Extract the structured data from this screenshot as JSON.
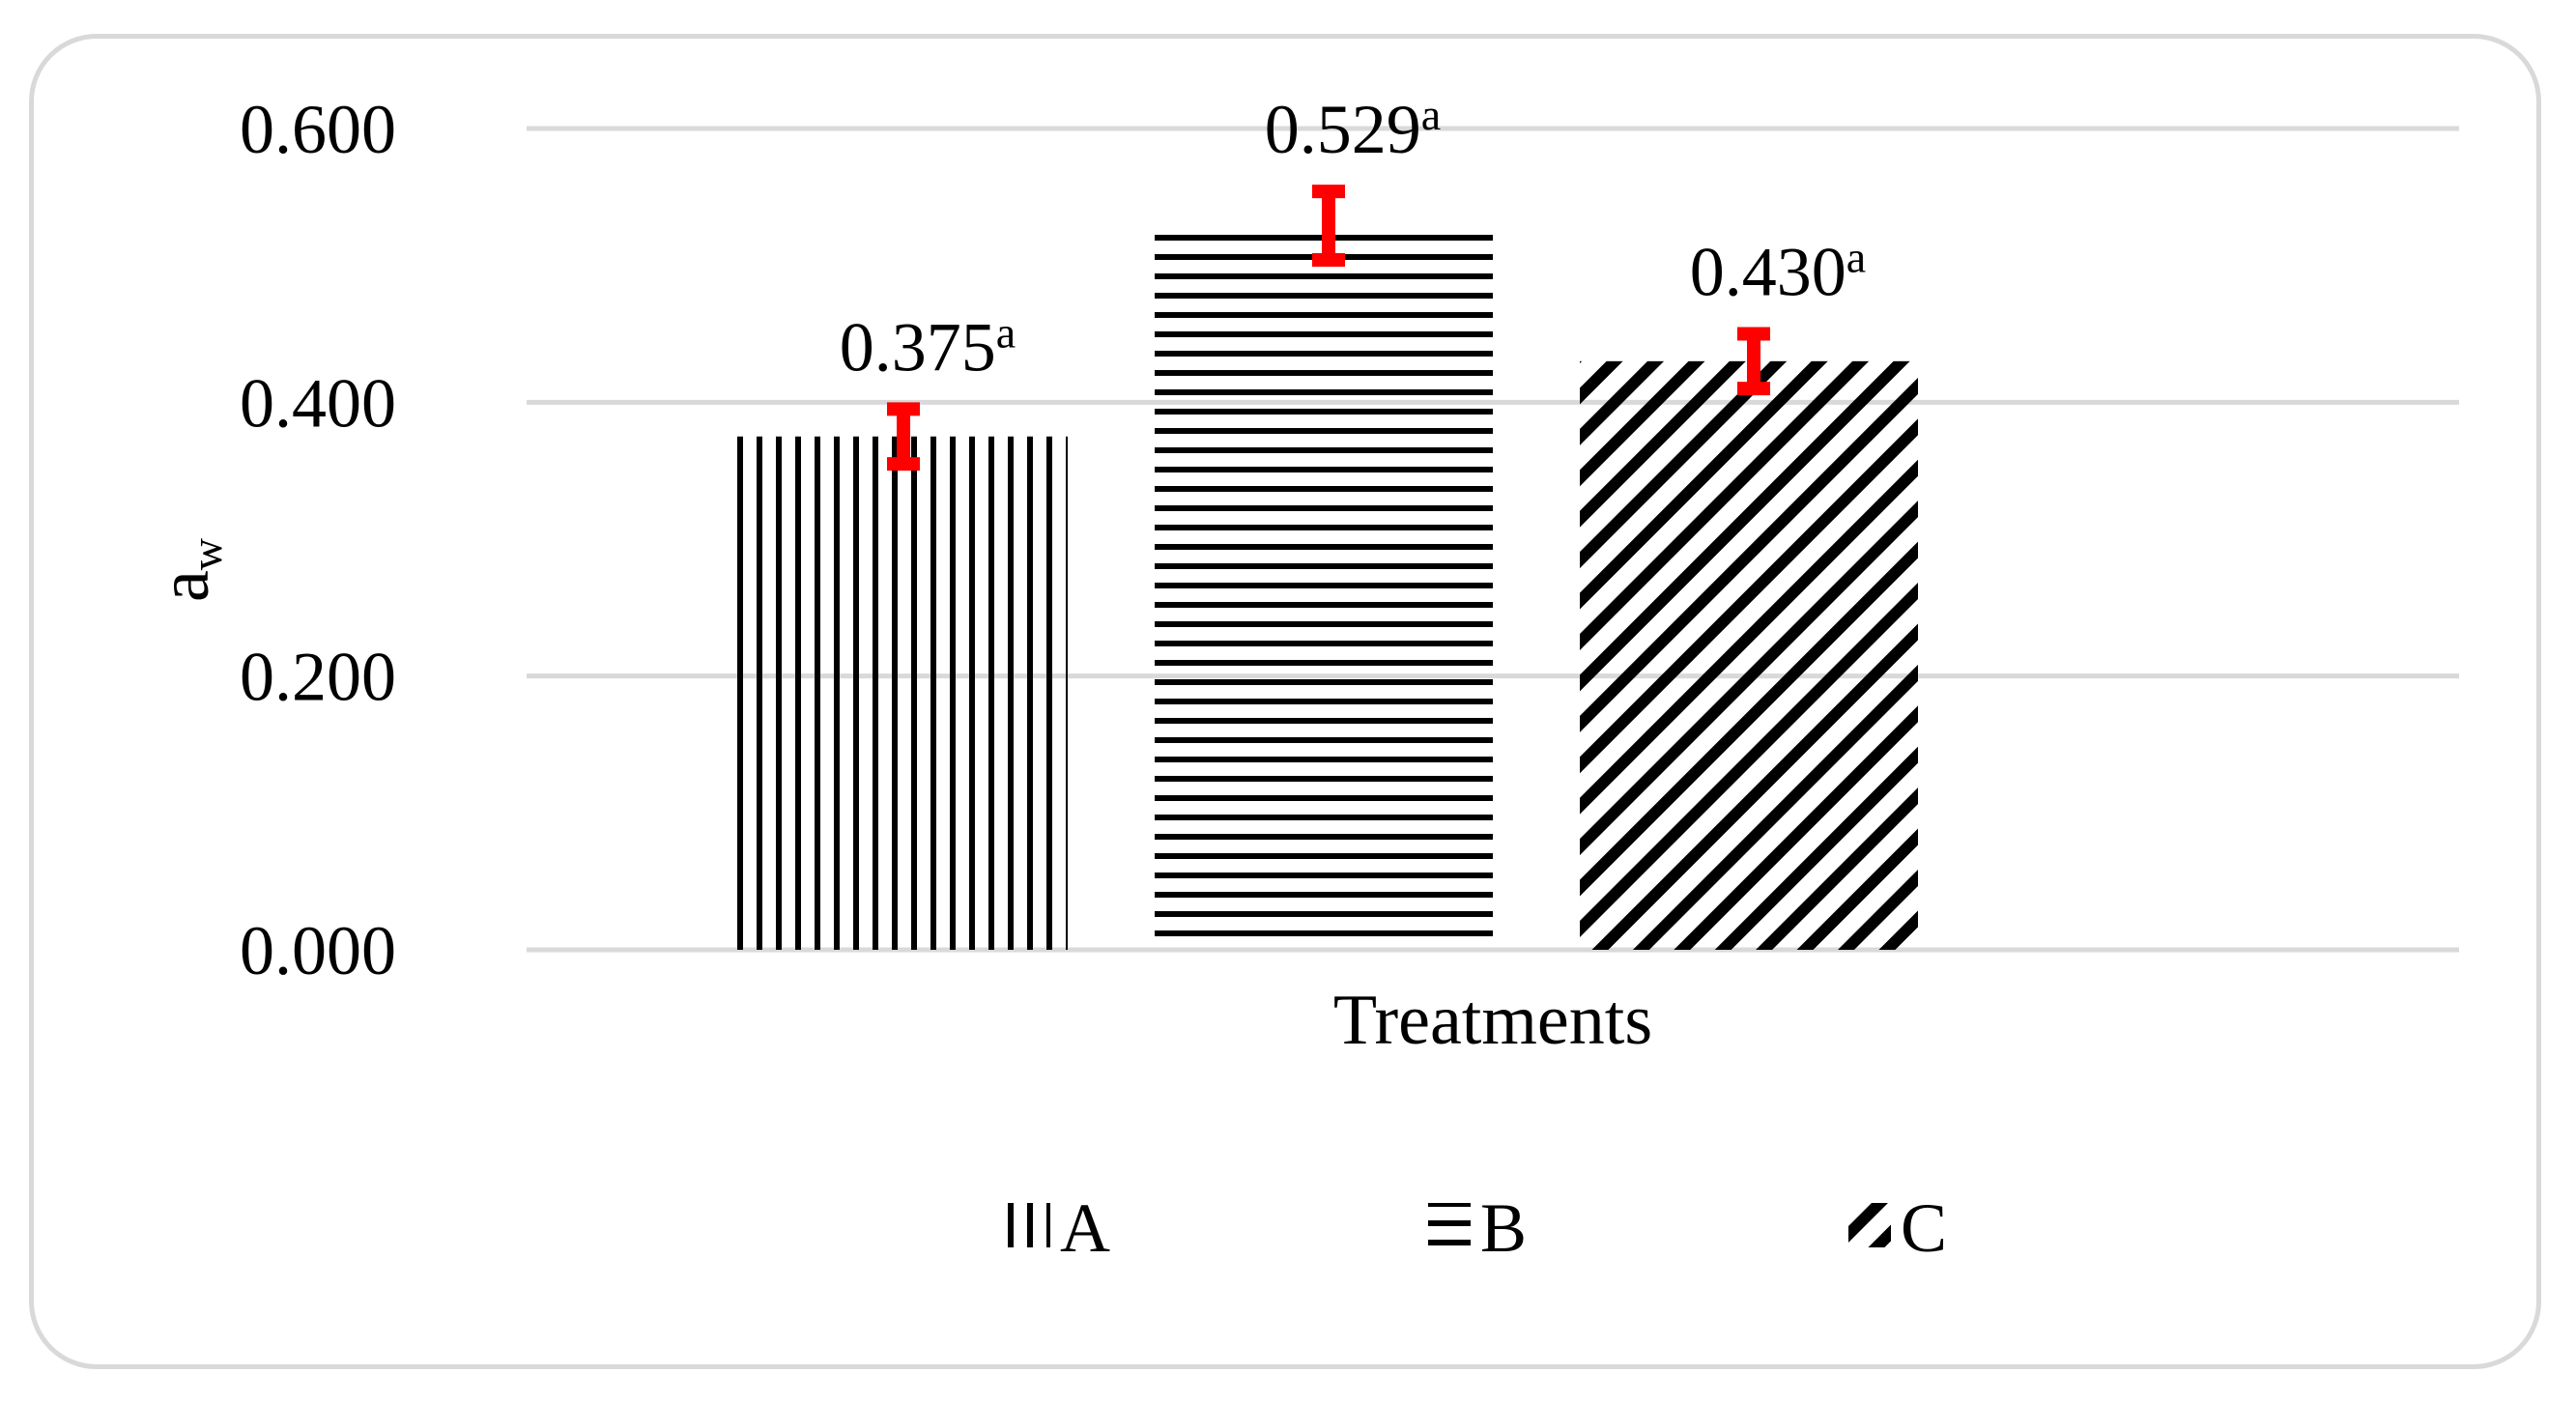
{
  "chart_data": {
    "type": "bar",
    "title": "",
    "xlabel": "Treatments",
    "ylabel": {
      "base": "a",
      "subscript": "w"
    },
    "ylim": [
      0,
      0.6
    ],
    "yticks": [
      "0.000",
      "0.200",
      "0.400",
      "0.600"
    ],
    "grid": true,
    "legend_position": "bottom",
    "series": [
      {
        "name": "A",
        "value": 0.375,
        "label": "0.375",
        "superscript": "a",
        "error": 0.02,
        "pattern": "vertical-lines"
      },
      {
        "name": "B",
        "value": 0.529,
        "label": "0.529",
        "superscript": "a",
        "error": 0.025,
        "pattern": "horizontal-lines"
      },
      {
        "name": "C",
        "value": 0.43,
        "label": "0.430",
        "superscript": "a",
        "error": 0.02,
        "pattern": "diagonal-lines"
      }
    ],
    "colors": {
      "bar_pattern": "#000000",
      "error_bar": "#ff0000",
      "grid": "#d9d9d9",
      "frame": "#d9d9d9"
    }
  }
}
